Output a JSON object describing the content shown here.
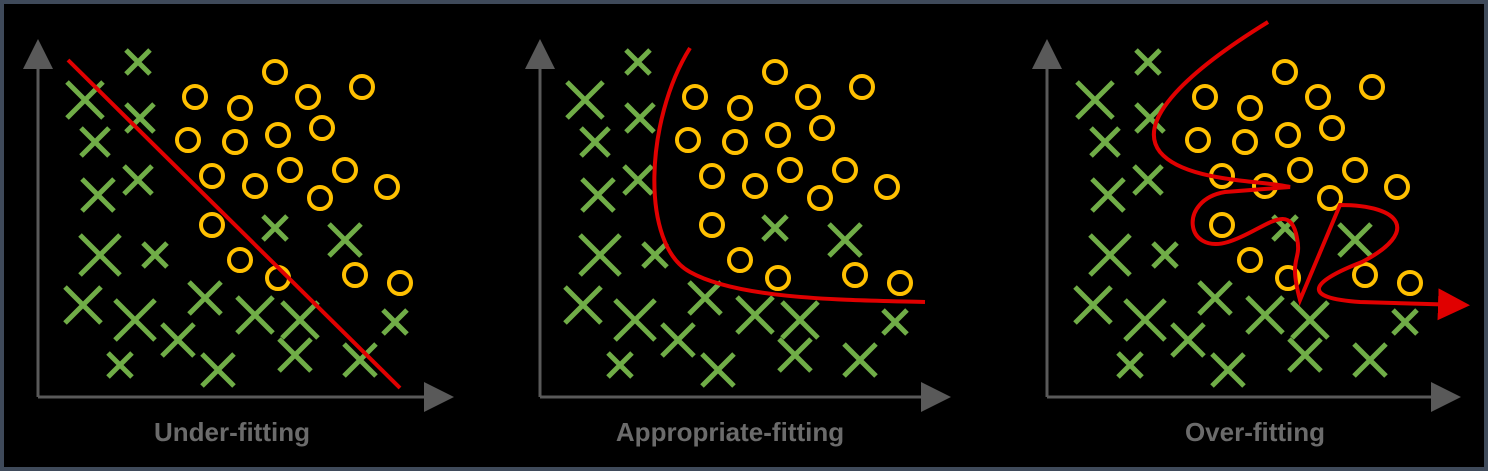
{
  "panels": [
    {
      "label": "Under-fitting"
    },
    {
      "label": "Appropriate-fitting"
    },
    {
      "label": "Over-fitting"
    }
  ]
}
